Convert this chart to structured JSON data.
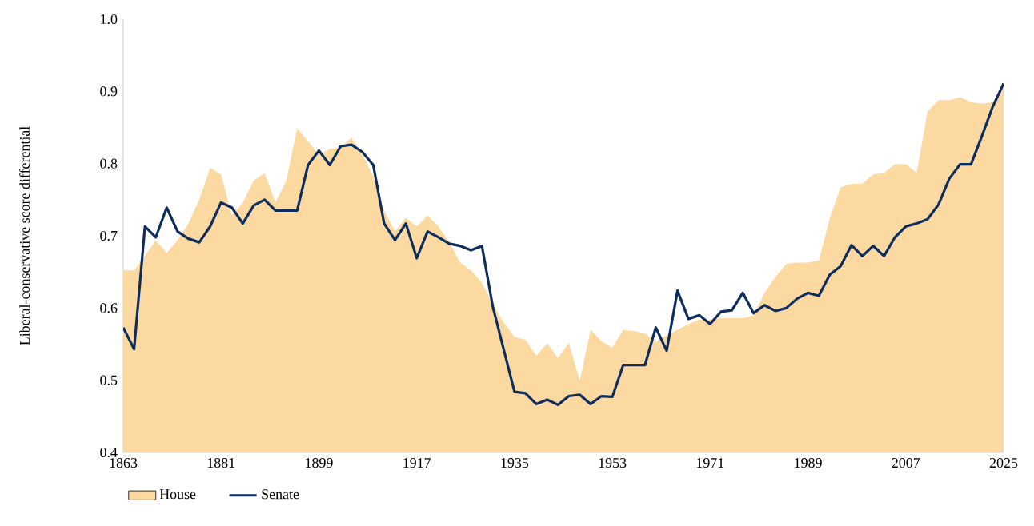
{
  "chart_data": {
    "type": "line",
    "ylabel": "Liberal-conservative score differential",
    "x": [
      1863,
      1865,
      1867,
      1869,
      1871,
      1873,
      1875,
      1877,
      1879,
      1881,
      1883,
      1885,
      1887,
      1889,
      1891,
      1893,
      1895,
      1897,
      1899,
      1901,
      1903,
      1905,
      1907,
      1909,
      1911,
      1913,
      1915,
      1917,
      1919,
      1921,
      1923,
      1925,
      1927,
      1929,
      1931,
      1933,
      1935,
      1937,
      1939,
      1941,
      1943,
      1945,
      1947,
      1949,
      1951,
      1953,
      1955,
      1957,
      1959,
      1961,
      1963,
      1965,
      1967,
      1969,
      1971,
      1973,
      1975,
      1977,
      1979,
      1981,
      1983,
      1985,
      1987,
      1989,
      1991,
      1993,
      1995,
      1997,
      1999,
      2001,
      2003,
      2005,
      2007,
      2009,
      2011,
      2013,
      2015,
      2017,
      2019,
      2021,
      2023,
      2025
    ],
    "series": [
      {
        "name": "House",
        "type": "area",
        "color": "#fcd9a0",
        "values": [
          0.652,
          0.652,
          0.672,
          0.694,
          0.676,
          0.694,
          0.717,
          0.75,
          0.794,
          0.785,
          0.728,
          0.746,
          0.776,
          0.787,
          0.746,
          0.776,
          0.849,
          0.831,
          0.812,
          0.82,
          0.822,
          0.836,
          0.812,
          0.783,
          0.735,
          0.706,
          0.725,
          0.713,
          0.728,
          0.713,
          0.691,
          0.663,
          0.652,
          0.635,
          0.606,
          0.58,
          0.56,
          0.556,
          0.534,
          0.551,
          0.531,
          0.552,
          0.499,
          0.57,
          0.554,
          0.545,
          0.57,
          0.568,
          0.565,
          0.553,
          0.562,
          0.57,
          0.578,
          0.584,
          0.584,
          0.586,
          0.586,
          0.586,
          0.59,
          0.621,
          0.643,
          0.661,
          0.663,
          0.663,
          0.666,
          0.724,
          0.767,
          0.772,
          0.772,
          0.785,
          0.787,
          0.799,
          0.799,
          0.787,
          0.872,
          0.888,
          0.888,
          0.892,
          0.885,
          0.883,
          0.885,
          0.905
        ]
      },
      {
        "name": "Senate",
        "color": "#0d2d5e",
        "values": [
          0.573,
          0.543,
          0.713,
          0.698,
          0.739,
          0.706,
          0.696,
          0.691,
          0.713,
          0.746,
          0.739,
          0.717,
          0.742,
          0.75,
          0.735,
          0.735,
          0.735,
          0.798,
          0.818,
          0.798,
          0.824,
          0.826,
          0.816,
          0.798,
          0.717,
          0.694,
          0.717,
          0.669,
          0.706,
          0.698,
          0.689,
          0.686,
          0.68,
          0.686,
          0.602,
          0.543,
          0.484,
          0.482,
          0.467,
          0.473,
          0.466,
          0.478,
          0.48,
          0.467,
          0.478,
          0.477,
          0.521,
          0.521,
          0.521,
          0.573,
          0.541,
          0.624,
          0.585,
          0.59,
          0.578,
          0.595,
          0.597,
          0.621,
          0.593,
          0.604,
          0.596,
          0.6,
          0.613,
          0.621,
          0.617,
          0.646,
          0.658,
          0.687,
          0.672,
          0.686,
          0.672,
          0.698,
          0.713,
          0.717,
          0.723,
          0.743,
          0.779,
          0.799,
          0.799,
          0.838,
          0.879,
          0.911
        ]
      }
    ],
    "xlim": [
      1863,
      2025
    ],
    "xticks": [
      1863,
      1881,
      1899,
      1917,
      1935,
      1953,
      1971,
      1989,
      2007,
      2025
    ],
    "ylim": [
      0.4,
      1.0
    ],
    "yticks": [
      0.4,
      0.5,
      0.6,
      0.7,
      0.8,
      0.9,
      {
        "value": 1.0,
        "label": "1.0"
      }
    ],
    "legend": "bottom left",
    "grid": false
  }
}
